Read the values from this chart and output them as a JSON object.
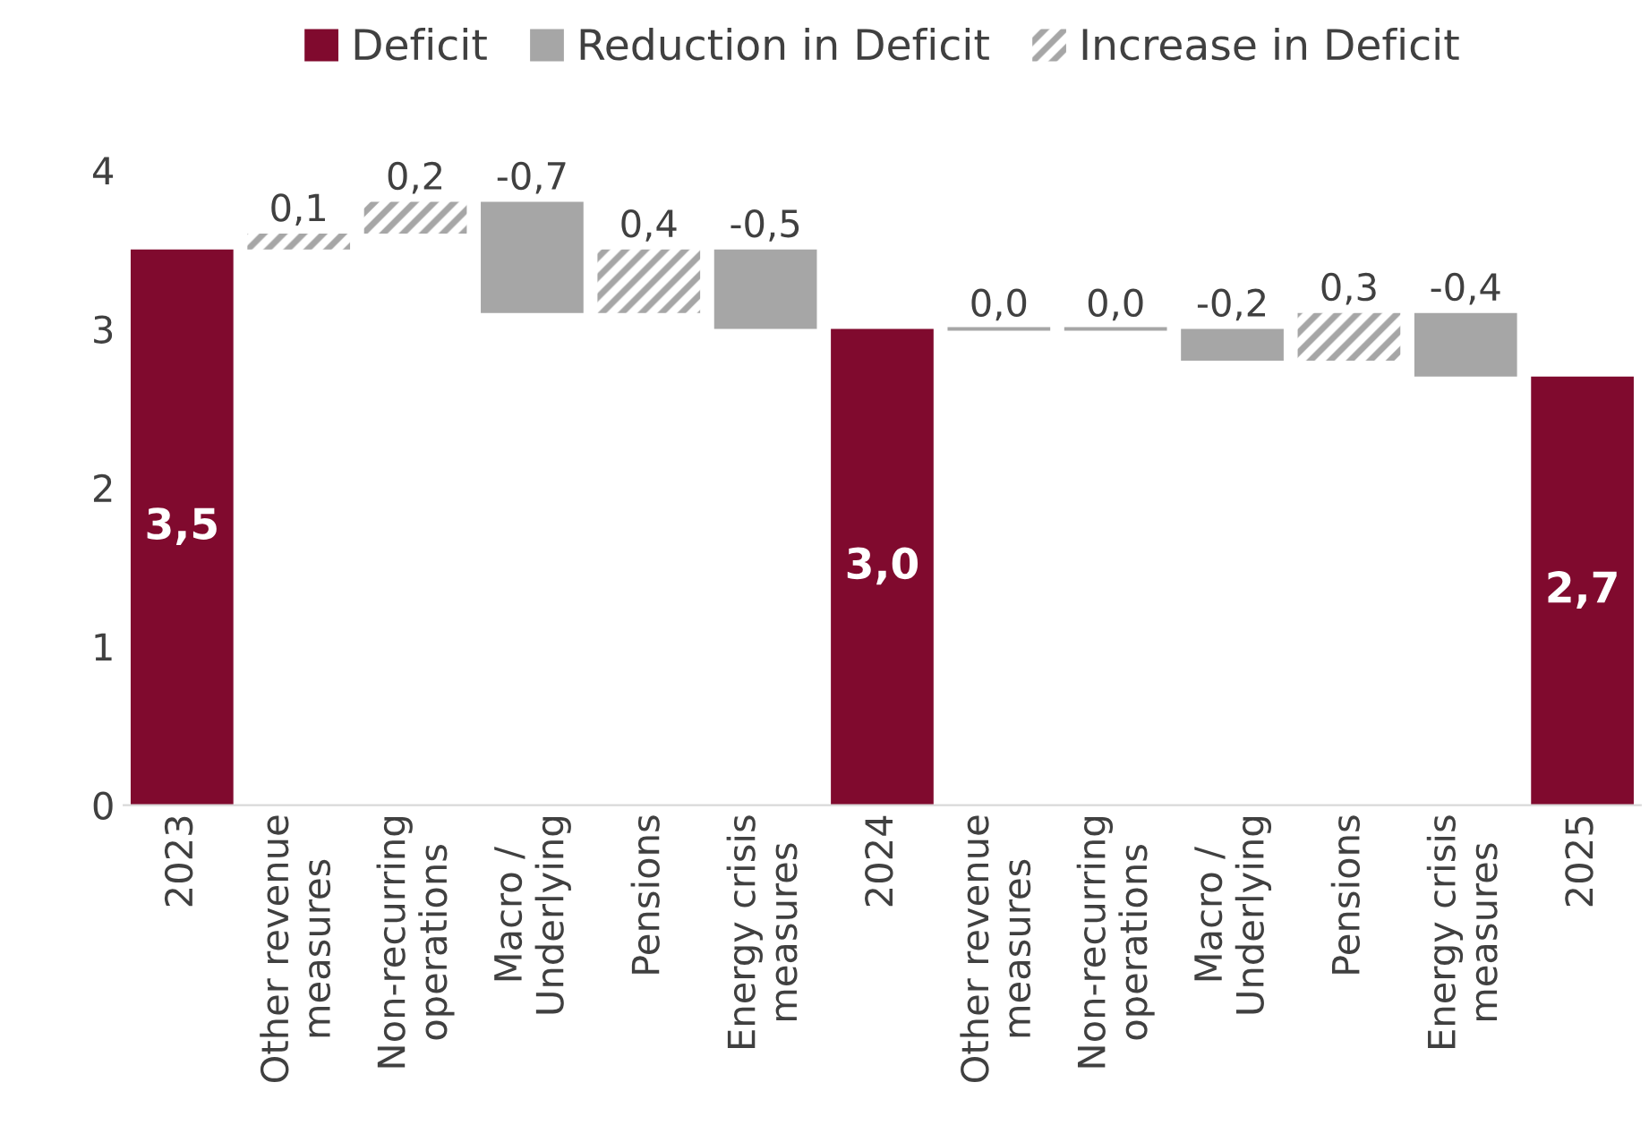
{
  "chart_data": {
    "type": "bar",
    "categories": [
      "2023",
      "Other revenue\nmeasures",
      "Non-recurring\noperations",
      "Macro /\nUnderlying",
      "Pensions",
      "Energy crisis\nmeasures",
      "2024",
      "Other revenue\nmeasures",
      "Non-recurring\noperations",
      "Macro /\nUnderlying",
      "Pensions",
      "Energy crisis\nmeasures",
      "2025"
    ],
    "series": [
      {
        "name": "Deficit",
        "color": "#800a2e",
        "values": [
          3.5,
          null,
          null,
          null,
          null,
          null,
          3.0,
          null,
          null,
          null,
          null,
          null,
          2.7
        ],
        "base": [
          0,
          null,
          null,
          null,
          null,
          null,
          0,
          null,
          null,
          null,
          null,
          null,
          0
        ],
        "value_labels": [
          "3,5",
          null,
          null,
          null,
          null,
          null,
          "3,0",
          null,
          null,
          null,
          null,
          null,
          "2,7"
        ]
      },
      {
        "name": "Reduction in Deficit",
        "color": "#a6a6a6",
        "values": [
          null,
          null,
          null,
          -0.7,
          null,
          -0.5,
          null,
          null,
          0.0,
          -0.2,
          null,
          -0.4,
          null
        ],
        "base": [
          null,
          null,
          null,
          3.8,
          null,
          3.5,
          null,
          null,
          3.0,
          3.0,
          null,
          3.1,
          null
        ],
        "value_labels": [
          null,
          null,
          null,
          "-0,7",
          null,
          "-0,5",
          null,
          null,
          "0,0",
          "-0,2",
          null,
          "-0,4",
          null
        ]
      },
      {
        "name": "Increase in Deficit",
        "color": "#a6a6a6",
        "values": [
          null,
          0.1,
          0.2,
          null,
          0.4,
          null,
          null,
          0.0,
          null,
          null,
          0.3,
          null,
          null
        ],
        "base": [
          null,
          3.5,
          3.6,
          null,
          3.1,
          null,
          null,
          3.0,
          null,
          null,
          2.8,
          null,
          null
        ],
        "value_labels": [
          null,
          "0,1",
          "0,2",
          null,
          "0,4",
          null,
          null,
          "0,0",
          null,
          null,
          "0,3",
          null,
          null
        ]
      }
    ],
    "ylim": [
      0,
      4
    ],
    "yticks": [
      0,
      1,
      2,
      3,
      4
    ],
    "legend": "top",
    "grid": false
  }
}
